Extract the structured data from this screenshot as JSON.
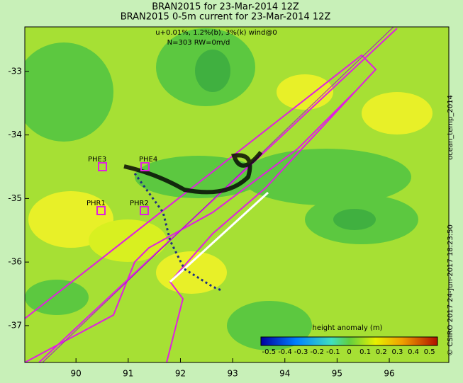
{
  "header": {
    "title": "BRAN2015 for 23-Mar-2014 12Z",
    "subtitle": "BRAN2015 0-5m current for 23-Mar-2014 12Z",
    "note1": "u+0.01%, 1.2%(b), 3%(k) wind@0",
    "note2": "N=303 RW=0m/d"
  },
  "map": {
    "xlim": [
      89.02,
      97.14
    ],
    "ylim": [
      -37.58,
      -32.3
    ],
    "xticks": [
      90,
      91,
      92,
      93,
      94,
      95,
      96
    ],
    "yticks": [
      -33,
      -34,
      -35,
      -36,
      -37
    ],
    "sites": [
      "PHE3",
      "PHE4",
      "PHR1",
      "PHR2"
    ]
  },
  "colorbar": {
    "label": "height anomaly (m)",
    "range": [
      -0.55,
      0.55
    ],
    "ticks": [
      -0.5,
      -0.4,
      -0.3,
      -0.2,
      -0.1,
      0,
      0.1,
      0.2,
      0.3,
      0.4,
      0.5
    ]
  },
  "side": {
    "product": "ocean_temp_2014",
    "credit": "© CSIRO 2017   24-Jun-2017 18:23:50"
  }
}
